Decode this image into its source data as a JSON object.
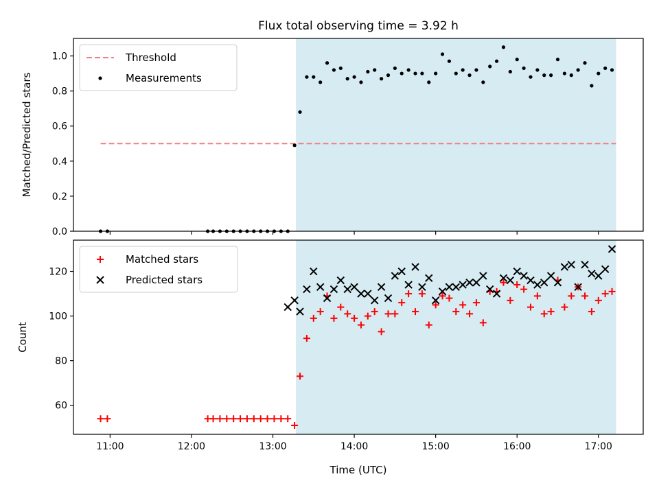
{
  "figure": {
    "title": "Flux total observing time = 3.92 h"
  },
  "colors": {
    "threshold": "#f08080",
    "measurement": "#000000",
    "matched": "#ff0000",
    "predicted": "#000000",
    "observing_span": "#add8e6"
  },
  "chart_data": [
    {
      "type": "scatter",
      "panel": "top",
      "title": "Flux total observing time = 3.92 h",
      "xlabel": "",
      "ylabel": "Matched/Predicted stars",
      "xlim": [
        "10:33",
        "17:33"
      ],
      "ylim": [
        0,
        1.1
      ],
      "xticks": [
        "11:00",
        "12:00",
        "13:00",
        "14:00",
        "15:00",
        "16:00",
        "17:00"
      ],
      "yticks": [
        "0.0",
        "0.2",
        "0.4",
        "0.6",
        "0.8",
        "1.0"
      ],
      "legend_position": "top-left",
      "legend": [
        "Threshold",
        "Measurements"
      ],
      "shaded_span": [
        "13:17",
        "17:13"
      ],
      "threshold": {
        "name": "Threshold",
        "y": 0.5,
        "x": [
          "10:53",
          "17:13"
        ]
      },
      "series": [
        {
          "name": "Measurements",
          "x": [
            "10:53",
            "10:58",
            "12:12",
            "12:16",
            "12:21",
            "12:26",
            "12:31",
            "12:36",
            "12:41",
            "12:46",
            "12:51",
            "12:56",
            "13:01",
            "13:06",
            "13:11",
            "13:16",
            "13:20",
            "13:25",
            "13:30",
            "13:35",
            "13:40",
            "13:45",
            "13:50",
            "13:55",
            "14:00",
            "14:05",
            "14:10",
            "14:15",
            "14:20",
            "14:25",
            "14:30",
            "14:35",
            "14:40",
            "14:45",
            "14:50",
            "14:55",
            "15:00",
            "15:05",
            "15:10",
            "15:15",
            "15:20",
            "15:25",
            "15:30",
            "15:35",
            "15:40",
            "15:45",
            "15:50",
            "15:55",
            "16:00",
            "16:05",
            "16:10",
            "16:15",
            "16:20",
            "16:25",
            "16:30",
            "16:35",
            "16:40",
            "16:45",
            "16:50",
            "16:55",
            "17:00",
            "17:05",
            "17:10"
          ],
          "y": [
            0.0,
            0.0,
            0.0,
            0.0,
            0.0,
            0.0,
            0.0,
            0.0,
            0.0,
            0.0,
            0.0,
            0.0,
            0.0,
            0.0,
            0.0,
            0.49,
            0.68,
            0.88,
            0.88,
            0.85,
            0.96,
            0.92,
            0.93,
            0.87,
            0.88,
            0.85,
            0.91,
            0.92,
            0.87,
            0.89,
            0.93,
            0.9,
            0.92,
            0.9,
            0.9,
            0.85,
            0.9,
            1.01,
            0.97,
            0.9,
            0.92,
            0.89,
            0.92,
            0.85,
            0.94,
            0.97,
            1.05,
            0.91,
            0.98,
            0.93,
            0.88,
            0.92,
            0.89,
            0.89,
            0.98,
            0.9,
            0.89,
            0.92,
            0.96,
            0.83,
            0.9,
            0.93,
            0.92
          ]
        }
      ]
    },
    {
      "type": "scatter",
      "panel": "bottom",
      "xlabel": "Time (UTC)",
      "ylabel": "Count",
      "xlim": [
        "10:33",
        "17:33"
      ],
      "ylim": [
        47,
        134
      ],
      "xticks": [
        "11:00",
        "12:00",
        "13:00",
        "14:00",
        "15:00",
        "16:00",
        "17:00"
      ],
      "yticks": [
        "60",
        "80",
        "100",
        "120"
      ],
      "legend_position": "top-left",
      "legend": [
        "Matched stars",
        "Predicted stars"
      ],
      "shaded_span": [
        "13:17",
        "17:13"
      ],
      "series": [
        {
          "name": "Matched stars",
          "marker": "plus",
          "x": [
            "10:53",
            "10:58",
            "12:12",
            "12:16",
            "12:21",
            "12:26",
            "12:31",
            "12:36",
            "12:41",
            "12:46",
            "12:51",
            "12:56",
            "13:01",
            "13:06",
            "13:11",
            "13:16",
            "13:20",
            "13:25",
            "13:30",
            "13:35",
            "13:40",
            "13:45",
            "13:50",
            "13:55",
            "14:00",
            "14:05",
            "14:10",
            "14:15",
            "14:20",
            "14:25",
            "14:30",
            "14:35",
            "14:40",
            "14:45",
            "14:50",
            "14:55",
            "15:00",
            "15:05",
            "15:10",
            "15:15",
            "15:20",
            "15:25",
            "15:30",
            "15:35",
            "15:40",
            "15:45",
            "15:50",
            "15:55",
            "16:00",
            "16:05",
            "16:10",
            "16:15",
            "16:20",
            "16:25",
            "16:30",
            "16:35",
            "16:40",
            "16:45",
            "16:50",
            "16:55",
            "17:00",
            "17:05",
            "17:10"
          ],
          "y": [
            54,
            54,
            54,
            54,
            54,
            54,
            54,
            54,
            54,
            54,
            54,
            54,
            54,
            54,
            54,
            51,
            73,
            90,
            99,
            102,
            109,
            99,
            104,
            101,
            99,
            96,
            100,
            102,
            93,
            101,
            101,
            106,
            110,
            102,
            110,
            96,
            105,
            109,
            108,
            102,
            105,
            101,
            106,
            97,
            111,
            111,
            115,
            107,
            114,
            112,
            104,
            109,
            101,
            102,
            116,
            104,
            109,
            113,
            109,
            102,
            107,
            110,
            111
          ]
        },
        {
          "name": "Predicted stars",
          "marker": "x",
          "x": [
            "13:11",
            "13:16",
            "13:20",
            "13:25",
            "13:30",
            "13:35",
            "13:40",
            "13:45",
            "13:50",
            "13:55",
            "14:00",
            "14:05",
            "14:10",
            "14:15",
            "14:20",
            "14:25",
            "14:30",
            "14:35",
            "14:40",
            "14:45",
            "14:50",
            "14:55",
            "15:00",
            "15:05",
            "15:10",
            "15:15",
            "15:20",
            "15:25",
            "15:30",
            "15:35",
            "15:40",
            "15:45",
            "15:50",
            "15:55",
            "16:00",
            "16:05",
            "16:10",
            "16:15",
            "16:20",
            "16:25",
            "16:30",
            "16:35",
            "16:40",
            "16:45",
            "16:50",
            "16:55",
            "17:00",
            "17:05",
            "17:10"
          ],
          "y": [
            104,
            107,
            102,
            112,
            120,
            113,
            108,
            112,
            116,
            112,
            113,
            110,
            110,
            107,
            113,
            108,
            118,
            120,
            114,
            122,
            113,
            117,
            107,
            111,
            113,
            113,
            114,
            115,
            115,
            118,
            112,
            110,
            117,
            116,
            120,
            118,
            116,
            114,
            115,
            118,
            115,
            122,
            123,
            113,
            123,
            119,
            118,
            121,
            130
          ]
        }
      ]
    }
  ]
}
